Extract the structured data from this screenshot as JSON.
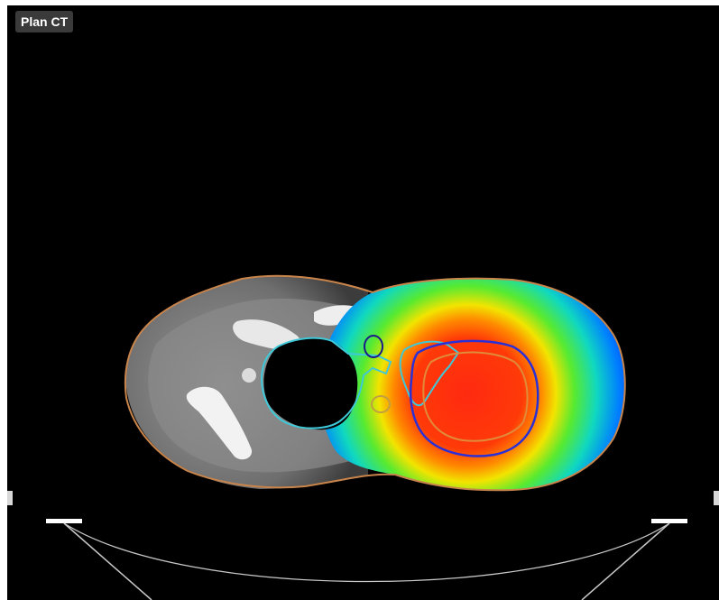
{
  "viewer": {
    "label": "Plan CT"
  },
  "colors": {
    "background": "#000000",
    "body_contour": "#c8844a",
    "ptv_contour": "#2b2fd6",
    "ctv_contour": "#e08a3a",
    "lung_contour": "#3ec8d8",
    "dose_high": "#ff2a10",
    "dose_mid": "#f6e000",
    "dose_low": "#0010ff"
  },
  "icons": {
    "couch": "treatment-couch-arc"
  }
}
